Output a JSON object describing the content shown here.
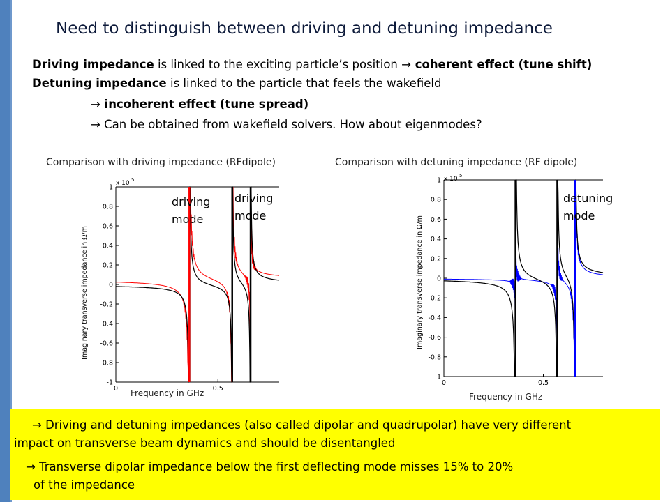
{
  "slide": {
    "title": "Need to distinguish between driving and detuning impedance",
    "line1": {
      "b1": "Driving impedance",
      "t1": " is linked to the exciting particle’s position ",
      "arrow": "→",
      "b2": " coherent effect (tune shift)"
    },
    "line2": {
      "b1": "Detuning impedance",
      "t1": " is linked to the particle that feels the wakefield"
    },
    "line3": {
      "arrow": "→",
      "b1": " incoherent effect (tune spread)"
    },
    "line4": {
      "arrow": "→",
      "t1": " Can be obtained from wakefield solvers. How about eigenmodes?"
    },
    "bottom": {
      "l1": "→ Driving and detuning impedances (also called dipolar and quadrupolar) have very different",
      "l2": "impact on transverse beam dynamics and should be disentangled",
      "l3": "→ Transverse dipolar impedance below the first deflecting mode misses 15% to 20%",
      "l4": "of the impedance"
    },
    "colors": {
      "left_bar": "#4f81bd",
      "highlight": "#ffff00",
      "driving_curve": "#ff0000",
      "detuning_curve": "#0000ff"
    }
  },
  "chart_data": [
    {
      "type": "line",
      "caption": "Comparison with driving impedance (RFdipole)",
      "xlabel": "Frequency in GHz",
      "ylabel": "Imaginary transverse impedance in Ω/m",
      "scale_label": "x 10",
      "scale_exp": "5",
      "xlim": [
        0,
        0.8
      ],
      "ylim": [
        -1,
        1
      ],
      "xticks": [
        "0",
        "0.5"
      ],
      "yticks": [
        "1",
        "0.8",
        "0.6",
        "0.4",
        "0.2",
        "0",
        "-0.2",
        "-0.4",
        "-0.6",
        "-0.8",
        "-1"
      ],
      "resonances": [
        0.36,
        0.57,
        0.66
      ],
      "baseline": 0.05,
      "annotations": [
        {
          "l1": "driving",
          "l2": "mode"
        },
        {
          "l1": "driving",
          "l2": "mode"
        }
      ],
      "series": [
        {
          "color": "#000000"
        },
        {
          "color": "#ff0000"
        }
      ]
    },
    {
      "type": "line",
      "caption": "Comparison with detuning impedance (RF dipole)",
      "xlabel": "Frequency in GHz",
      "ylabel": "Imaginary transverse impedance in Ω/m",
      "scale_label": "x 10",
      "scale_exp": "5",
      "xlim": [
        0,
        0.8
      ],
      "ylim": [
        -1,
        1
      ],
      "xticks": [
        "0",
        "0.5"
      ],
      "yticks": [
        "1",
        "0.8",
        "0.6",
        "0.4",
        "0.2",
        "0",
        "-0.2",
        "-0.4",
        "-0.6",
        "-0.8",
        "-1"
      ],
      "resonances": [
        0.36,
        0.57,
        0.66
      ],
      "baseline": 0.0,
      "annotations": [
        {
          "l1": "detuning",
          "l2": "mode"
        }
      ],
      "series": [
        {
          "color": "#000000"
        },
        {
          "color": "#0000ff"
        }
      ]
    }
  ]
}
